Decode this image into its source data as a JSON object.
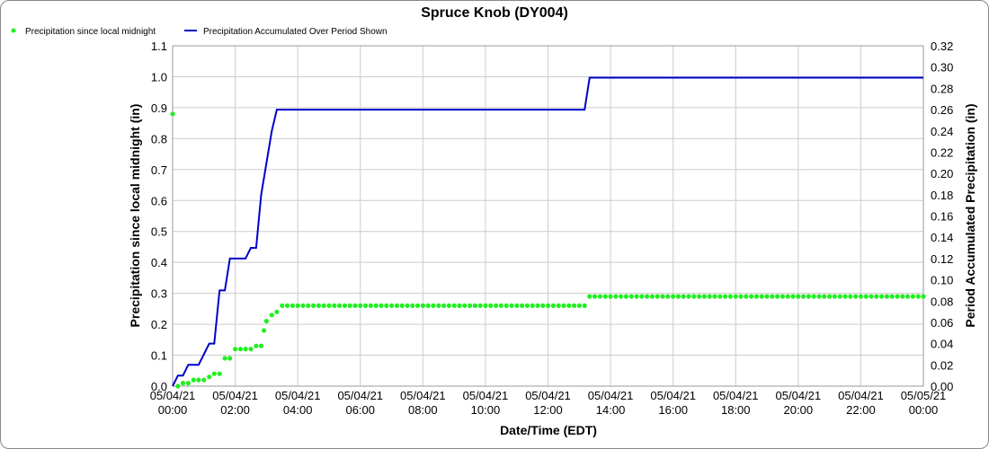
{
  "chart_data": {
    "type": "line",
    "title": "Spruce Knob (DY004)",
    "xlabel": "Date/Time (EDT)",
    "ylabel": "Precipitation since local midnight (in)",
    "y2label": "Period Accumulated Precipitation (in)",
    "legend_position": "top-left",
    "grid": true,
    "xlim": [
      0,
      24
    ],
    "ylim": [
      0,
      1.1
    ],
    "y2lim": [
      0,
      0.32
    ],
    "x_ticks": [
      {
        "v": 0,
        "l1": "05/04/21",
        "l2": "00:00"
      },
      {
        "v": 2,
        "l1": "05/04/21",
        "l2": "02:00"
      },
      {
        "v": 4,
        "l1": "05/04/21",
        "l2": "04:00"
      },
      {
        "v": 6,
        "l1": "05/04/21",
        "l2": "06:00"
      },
      {
        "v": 8,
        "l1": "05/04/21",
        "l2": "08:00"
      },
      {
        "v": 10,
        "l1": "05/04/21",
        "l2": "10:00"
      },
      {
        "v": 12,
        "l1": "05/04/21",
        "l2": "12:00"
      },
      {
        "v": 14,
        "l1": "05/04/21",
        "l2": "14:00"
      },
      {
        "v": 16,
        "l1": "05/04/21",
        "l2": "16:00"
      },
      {
        "v": 18,
        "l1": "05/04/21",
        "l2": "18:00"
      },
      {
        "v": 20,
        "l1": "05/04/21",
        "l2": "20:00"
      },
      {
        "v": 22,
        "l1": "05/04/21",
        "l2": "22:00"
      },
      {
        "v": 24,
        "l1": "05/05/21",
        "l2": "00:00"
      }
    ],
    "y_ticks": [
      "0.0",
      "0.1",
      "0.2",
      "0.3",
      "0.4",
      "0.5",
      "0.6",
      "0.7",
      "0.8",
      "0.9",
      "1.0",
      "1.1"
    ],
    "y2_ticks": [
      "0.00",
      "0.02",
      "0.04",
      "0.06",
      "0.08",
      "0.10",
      "0.12",
      "0.14",
      "0.16",
      "0.18",
      "0.20",
      "0.22",
      "0.24",
      "0.26",
      "0.28",
      "0.30",
      "0.32"
    ],
    "series": [
      {
        "name": "Precipitation since local midnight",
        "axis": "left",
        "style": "points",
        "color": "#22ee22",
        "points": [
          [
            0.0,
            0.88
          ],
          [
            0.17,
            0.0
          ],
          [
            0.33,
            0.01
          ],
          [
            0.5,
            0.01
          ],
          [
            0.67,
            0.02
          ],
          [
            0.83,
            0.02
          ],
          [
            1.0,
            0.02
          ],
          [
            1.17,
            0.03
          ],
          [
            1.33,
            0.04
          ],
          [
            1.5,
            0.04
          ],
          [
            1.67,
            0.09
          ],
          [
            1.83,
            0.09
          ],
          [
            2.0,
            0.12
          ],
          [
            2.17,
            0.12
          ],
          [
            2.33,
            0.12
          ],
          [
            2.5,
            0.12
          ],
          [
            2.67,
            0.13
          ],
          [
            2.83,
            0.13
          ],
          [
            2.92,
            0.18
          ],
          [
            3.0,
            0.21
          ],
          [
            3.17,
            0.23
          ],
          [
            3.33,
            0.24
          ]
        ],
        "flat_segments": [
          {
            "from": 3.5,
            "to": 13.17,
            "step": 0.1667,
            "value": 0.26
          },
          {
            "from": 13.33,
            "to": 24.0,
            "step": 0.1667,
            "value": 0.29
          }
        ]
      },
      {
        "name": "Precipitation Accumulated Over Period Shown",
        "axis": "right",
        "style": "line",
        "color": "#0000cc",
        "points": [
          [
            0.0,
            0.0
          ],
          [
            0.17,
            0.01
          ],
          [
            0.33,
            0.01
          ],
          [
            0.5,
            0.02
          ],
          [
            0.83,
            0.02
          ],
          [
            1.0,
            0.03
          ],
          [
            1.17,
            0.04
          ],
          [
            1.33,
            0.04
          ],
          [
            1.5,
            0.09
          ],
          [
            1.67,
            0.09
          ],
          [
            1.83,
            0.12
          ],
          [
            2.33,
            0.12
          ],
          [
            2.5,
            0.13
          ],
          [
            2.67,
            0.13
          ],
          [
            2.83,
            0.18
          ],
          [
            3.0,
            0.21
          ],
          [
            3.17,
            0.24
          ],
          [
            3.33,
            0.26
          ],
          [
            13.17,
            0.26
          ],
          [
            13.33,
            0.29
          ],
          [
            24.0,
            0.29
          ]
        ]
      }
    ]
  }
}
